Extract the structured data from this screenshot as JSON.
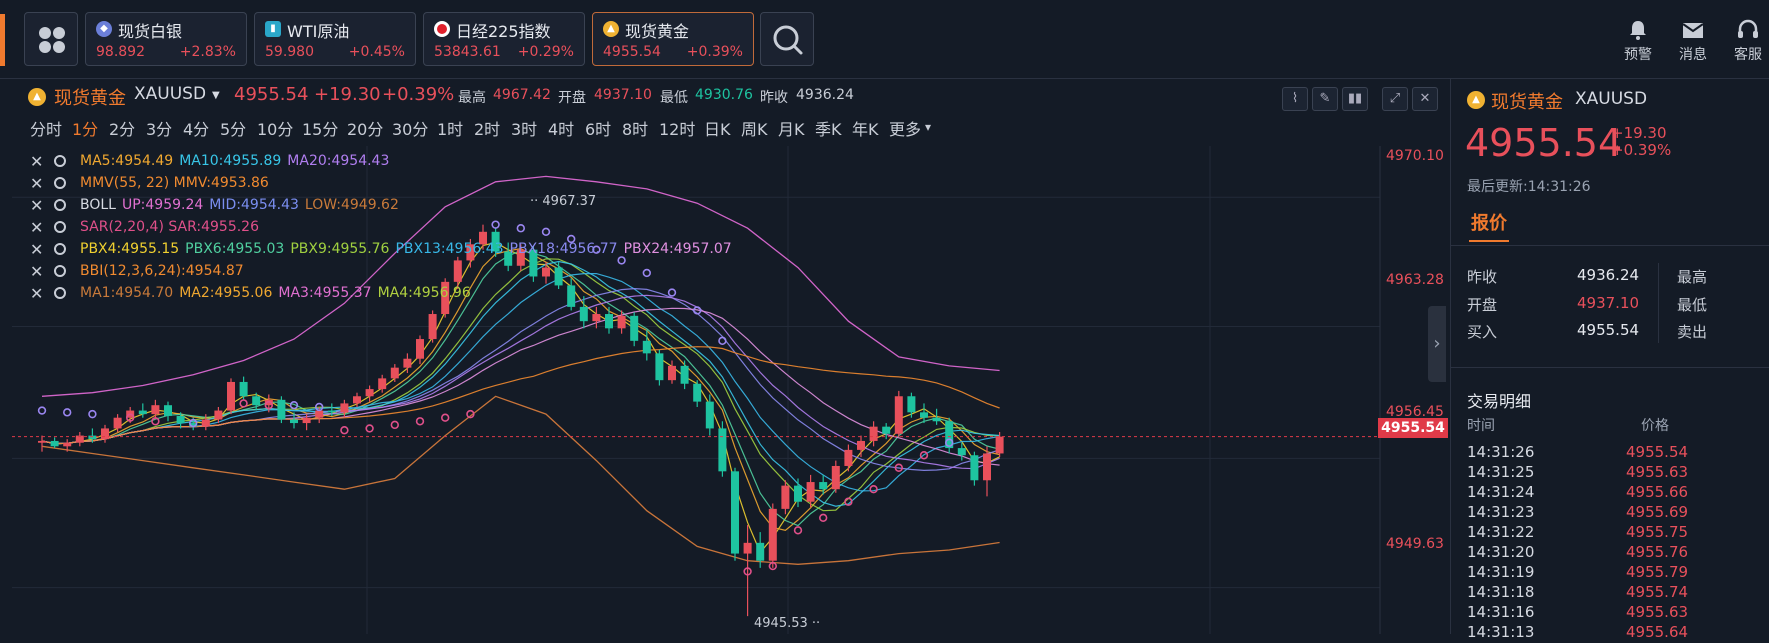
{
  "topbar": {
    "tickers": [
      {
        "name": "现货白银",
        "price": "98.892",
        "change": "+2.83%",
        "icon": "silver-icon",
        "icon_color": "#6b7fd9"
      },
      {
        "name": "WTI原油",
        "price": "59.980",
        "change": "+0.45%",
        "icon": "oil-icon",
        "icon_color": "#2aa7c9"
      },
      {
        "name": "日经225指数",
        "price": "53843.61",
        "change": "+0.29%",
        "icon": "japan-flag-icon",
        "icon_color": "#e0202c"
      },
      {
        "name": "现货黄金",
        "price": "4955.54",
        "change": "+0.39%",
        "icon": "gold-icon",
        "icon_color": "#f0b232"
      }
    ],
    "tools": [
      {
        "label": "预警",
        "icon": "bell-icon"
      },
      {
        "label": "消息",
        "icon": "mail-icon"
      },
      {
        "label": "客服",
        "icon": "headset-icon"
      }
    ]
  },
  "chart_header": {
    "name": "现货黄金",
    "symbol": "XAUUSD",
    "price": "4955.54",
    "change": "+19.30",
    "change_pct": "+0.39%",
    "high_label": "最高",
    "high": "4967.42",
    "open_label": "开盘",
    "open": "4937.10",
    "low_label": "最低",
    "low": "4930.76",
    "prev_label": "昨收",
    "prev": "4936.24"
  },
  "periods": [
    "分时",
    "1分",
    "2分",
    "3分",
    "4分",
    "5分",
    "10分",
    "15分",
    "20分",
    "30分",
    "1时",
    "2时",
    "3时",
    "4时",
    "6时",
    "8时",
    "12时",
    "日K",
    "周K",
    "月K",
    "季K",
    "年K",
    "更多"
  ],
  "active_period": "1分",
  "indicators": [
    {
      "label": "MA5:4954.49",
      "label2": "MA10:4955.89",
      "label3": "MA20:4954.43"
    },
    {
      "label": "MMV(55, 22) MMV:4953.86",
      "label2": "",
      "label3": ""
    },
    {
      "label": "BOLL",
      "label2": "UP:4959.24",
      "label3": "MID:4954.43",
      "label4": "LOW:4949.62"
    },
    {
      "label": "SAR(2,20,4) SAR:4955.26",
      "label2": "",
      "label3": ""
    },
    {
      "label": "PBX4:4955.15",
      "label2": "PBX6:4955.03",
      "label3": "PBX9:4955.76",
      "label4": "PBX13:4956.43",
      "label5": "PBX18:4956.77",
      "label6": "PBX24:4957.07"
    },
    {
      "label": "BBI(12,3,6,24):4954.87",
      "label2": "",
      "label3": ""
    },
    {
      "label": "MA1:4954.70",
      "label2": "MA2:4955.06",
      "label3": "MA3:4955.37",
      "label4": "MA4:4956.96"
    }
  ],
  "colors": {
    "up": "#e8505b",
    "down": "#1ec3a0",
    "accent": "#f07a2e",
    "bg": "#141b26"
  },
  "chart_data": {
    "type": "candlestick",
    "y_ticks": [
      "4970.10",
      "4963.28",
      "4956.45",
      "4949.63"
    ],
    "ylim": [
      4944.5,
      4971.8
    ],
    "current_price": "4955.54",
    "high_annotation": "4967.37",
    "low_annotation": "4945.53",
    "ohlc": [
      [
        4955.2,
        4955.6,
        4954.7,
        4955.3
      ],
      [
        4955.3,
        4955.5,
        4954.9,
        4955.0
      ],
      [
        4955.0,
        4955.4,
        4954.7,
        4955.2
      ],
      [
        4955.2,
        4955.8,
        4955.0,
        4955.6
      ],
      [
        4955.6,
        4956.0,
        4955.2,
        4955.4
      ],
      [
        4955.4,
        4956.2,
        4955.2,
        4956.0
      ],
      [
        4956.0,
        4956.8,
        4955.8,
        4956.6
      ],
      [
        4956.6,
        4957.2,
        4956.3,
        4957.0
      ],
      [
        4957.0,
        4957.4,
        4956.6,
        4956.8
      ],
      [
        4956.8,
        4957.6,
        4956.5,
        4957.3
      ],
      [
        4957.3,
        4957.5,
        4956.4,
        4956.7
      ],
      [
        4956.7,
        4956.9,
        4956.0,
        4956.3
      ],
      [
        4956.3,
        4956.6,
        4955.9,
        4956.1
      ],
      [
        4956.1,
        4956.8,
        4955.9,
        4956.5
      ],
      [
        4956.5,
        4957.2,
        4956.3,
        4957.0
      ],
      [
        4957.0,
        4958.8,
        4956.8,
        4958.6
      ],
      [
        4958.6,
        4958.9,
        4957.6,
        4957.8
      ],
      [
        4957.8,
        4958.0,
        4957.0,
        4957.3
      ],
      [
        4957.3,
        4957.9,
        4956.9,
        4957.6
      ],
      [
        4957.6,
        4957.8,
        4956.3,
        4956.5
      ],
      [
        4956.5,
        4956.9,
        4956.0,
        4956.3
      ],
      [
        4956.3,
        4956.8,
        4955.9,
        4956.6
      ],
      [
        4956.6,
        4957.2,
        4956.3,
        4957.0
      ],
      [
        4957.0,
        4957.4,
        4956.7,
        4956.9
      ],
      [
        4956.9,
        4957.6,
        4956.6,
        4957.4
      ],
      [
        4957.4,
        4958.0,
        4957.2,
        4957.8
      ],
      [
        4957.8,
        4958.4,
        4957.5,
        4958.2
      ],
      [
        4958.2,
        4959.0,
        4958.0,
        4958.8
      ],
      [
        4958.8,
        4959.6,
        4958.6,
        4959.4
      ],
      [
        4959.4,
        4960.2,
        4959.1,
        4959.9
      ],
      [
        4959.9,
        4961.2,
        4959.6,
        4961.0
      ],
      [
        4961.0,
        4962.6,
        4960.8,
        4962.4
      ],
      [
        4962.4,
        4964.4,
        4962.2,
        4964.2
      ],
      [
        4964.2,
        4965.6,
        4963.8,
        4965.4
      ],
      [
        4965.4,
        4966.6,
        4965.0,
        4966.3
      ],
      [
        4966.3,
        4967.4,
        4966.0,
        4967.0
      ],
      [
        4967.0,
        4967.2,
        4965.6,
        4965.9
      ],
      [
        4965.9,
        4966.4,
        4964.8,
        4965.1
      ],
      [
        4965.1,
        4966.3,
        4964.8,
        4966.0
      ],
      [
        4966.0,
        4966.2,
        4964.2,
        4964.5
      ],
      [
        4964.5,
        4965.3,
        4964.1,
        4965.0
      ],
      [
        4965.0,
        4965.3,
        4963.8,
        4964.0
      ],
      [
        4964.0,
        4964.4,
        4962.6,
        4962.8
      ],
      [
        4962.8,
        4963.4,
        4961.6,
        4962.0
      ],
      [
        4962.0,
        4962.8,
        4961.6,
        4962.4
      ],
      [
        4962.4,
        4962.8,
        4961.3,
        4961.6
      ],
      [
        4961.6,
        4962.6,
        4961.3,
        4962.3
      ],
      [
        4962.3,
        4962.5,
        4960.6,
        4960.9
      ],
      [
        4960.9,
        4961.5,
        4959.8,
        4960.2
      ],
      [
        4960.2,
        4960.4,
        4958.4,
        4958.7
      ],
      [
        4958.7,
        4959.8,
        4958.5,
        4959.5
      ],
      [
        4959.5,
        4959.8,
        4958.2,
        4958.5
      ],
      [
        4958.5,
        4958.7,
        4957.2,
        4957.5
      ],
      [
        4957.5,
        4957.9,
        4955.6,
        4956.0
      ],
      [
        4956.0,
        4956.4,
        4953.3,
        4953.6
      ],
      [
        4953.6,
        4953.8,
        4948.6,
        4949.0
      ],
      [
        4949.0,
        4950.6,
        4945.5,
        4949.6
      ],
      [
        4949.6,
        4950.2,
        4948.2,
        4948.6
      ],
      [
        4948.6,
        4951.8,
        4948.2,
        4951.5
      ],
      [
        4951.5,
        4953.1,
        4951.2,
        4952.8
      ],
      [
        4952.8,
        4953.2,
        4951.6,
        4951.9
      ],
      [
        4951.9,
        4953.4,
        4951.6,
        4953.0
      ],
      [
        4953.0,
        4953.4,
        4952.3,
        4952.6
      ],
      [
        4952.6,
        4954.2,
        4952.4,
        4953.9
      ],
      [
        4953.9,
        4955.1,
        4953.6,
        4954.8
      ],
      [
        4954.8,
        4955.6,
        4954.4,
        4955.3
      ],
      [
        4955.3,
        4956.4,
        4955.0,
        4956.1
      ],
      [
        4956.1,
        4956.3,
        4955.4,
        4955.7
      ],
      [
        4955.7,
        4958.1,
        4955.5,
        4957.8
      ],
      [
        4957.8,
        4958.0,
        4956.6,
        4956.9
      ],
      [
        4956.9,
        4957.4,
        4956.3,
        4956.6
      ],
      [
        4956.6,
        4957.1,
        4956.2,
        4956.4
      ],
      [
        4956.4,
        4956.6,
        4954.6,
        4954.9
      ],
      [
        4954.9,
        4955.2,
        4954.2,
        4954.5
      ],
      [
        4954.5,
        4954.7,
        4952.8,
        4953.1
      ],
      [
        4953.1,
        4955.0,
        4952.2,
        4954.6
      ],
      [
        4954.6,
        4955.8,
        4954.4,
        4955.54
      ]
    ],
    "sar_points": [
      [
        0,
        4957.0
      ],
      [
        2,
        4956.9
      ],
      [
        4,
        4956.8
      ],
      [
        7,
        4956.6
      ],
      [
        9,
        4956.4
      ],
      [
        12,
        4956.3
      ],
      [
        16,
        4957.4
      ],
      [
        18,
        4957.3
      ],
      [
        20,
        4957.3
      ],
      [
        22,
        4957.2
      ],
      [
        24,
        4955.9
      ],
      [
        26,
        4956.0
      ],
      [
        28,
        4956.2
      ],
      [
        30,
        4956.4
      ],
      [
        32,
        4956.6
      ],
      [
        34,
        4956.8
      ],
      [
        36,
        4967.4
      ],
      [
        38,
        4967.2
      ],
      [
        40,
        4967.0
      ],
      [
        42,
        4966.6
      ],
      [
        44,
        4966.0
      ],
      [
        46,
        4965.4
      ],
      [
        48,
        4964.7
      ],
      [
        50,
        4963.6
      ],
      [
        52,
        4962.6
      ],
      [
        54,
        4960.9
      ],
      [
        56,
        4948.0
      ],
      [
        58,
        4948.3
      ],
      [
        60,
        4950.3
      ],
      [
        62,
        4951.0
      ],
      [
        64,
        4951.9
      ],
      [
        66,
        4952.6
      ],
      [
        68,
        4953.8
      ],
      [
        70,
        4954.5
      ],
      [
        72,
        4955.2
      ]
    ],
    "boll_upper": [
      4957.8,
      4958.0,
      4958.4,
      4959.0,
      4959.8,
      4961.0,
      4963.0,
      4965.8,
      4968.4,
      4969.8,
      4970.1,
      4969.8,
      4969.4,
      4968.6,
      4967.2,
      4965.0,
      4962.0,
      4960.0,
      4959.5,
      4959.24
    ],
    "boll_lower": [
      4955.0,
      4954.6,
      4954.2,
      4953.8,
      4953.4,
      4953.0,
      4952.6,
      4953.2,
      4955.6,
      4957.8,
      4956.8,
      4954.2,
      4951.4,
      4949.4,
      4948.6,
      4948.4,
      4948.6,
      4949.0,
      4949.2,
      4949.62
    ]
  },
  "right_panel": {
    "name": "现货黄金",
    "symbol": "XAUUSD",
    "price": "4955.54",
    "change": "+19.30",
    "change_pct": "+0.39%",
    "updated": "最后更新:14:31:26",
    "tab": "报价",
    "quote_left": [
      {
        "label": "昨收",
        "value": "4936.24",
        "color": "#e6e9ef"
      },
      {
        "label": "开盘",
        "value": "4937.10",
        "color": "#e8505b"
      },
      {
        "label": "买入",
        "value": "4955.54",
        "color": "#e6e9ef"
      }
    ],
    "quote_right": [
      "最高",
      "最低",
      "卖出"
    ],
    "trades_title": "交易明细",
    "col_time": "时间",
    "col_price": "价格",
    "trades": [
      {
        "time": "14:31:26",
        "price": "4955.54"
      },
      {
        "time": "14:31:25",
        "price": "4955.63"
      },
      {
        "time": "14:31:24",
        "price": "4955.66"
      },
      {
        "time": "14:31:23",
        "price": "4955.69"
      },
      {
        "time": "14:31:22",
        "price": "4955.75"
      },
      {
        "time": "14:31:20",
        "price": "4955.76"
      },
      {
        "time": "14:31:19",
        "price": "4955.79"
      },
      {
        "time": "14:31:18",
        "price": "4955.74"
      },
      {
        "time": "14:31:16",
        "price": "4955.63"
      },
      {
        "time": "14:31:13",
        "price": "4955.64"
      }
    ]
  }
}
